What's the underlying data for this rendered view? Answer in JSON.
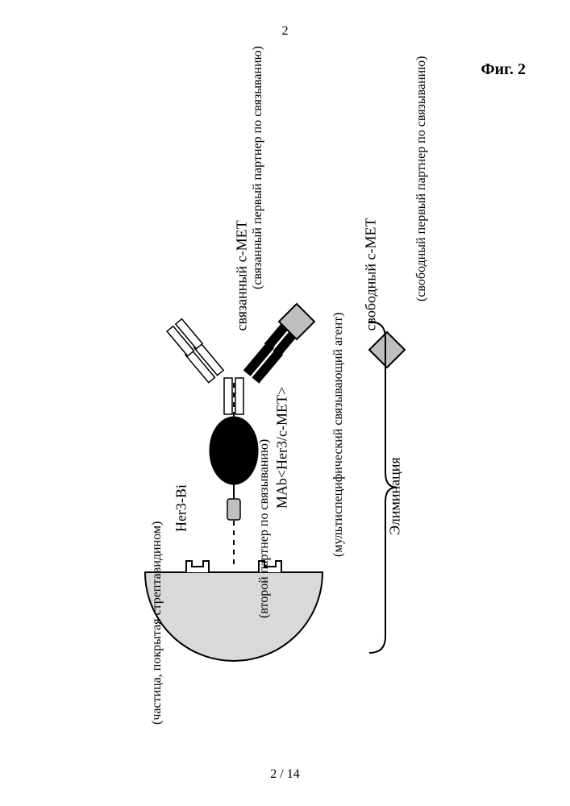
{
  "header": {
    "top_page": "2",
    "fig_title": "Фиг. 2",
    "bottom_page": "2 / 14"
  },
  "labels": {
    "free_cmet": "свободный   c-MET",
    "free_note": "(свободный первый партнер по связыванию)",
    "bound_note": "(связанный первый партнер по связыванию)",
    "bound_cmet": "связанный   c-MET",
    "mab": "MAb<Her3/c-MET>",
    "mab_note": "(мультиспецифический связывающий агент)",
    "her3bi": "Her3-Bi",
    "her3bi_note": "(второй партнер по связыванию)",
    "bead_note": "(частица, покрытая стрептавидином)",
    "elimination": "Элиминация"
  },
  "style": {
    "bg": "#ffffff",
    "stroke": "#000000",
    "bead_fill": "#d9d9d9",
    "receptor_fill": "#ffffff",
    "biotin_fill": "#c0c0c0",
    "her3_fill": "#000000",
    "cmet_fill": "#bfbfbf",
    "dash": "6,6",
    "font": "Times New Roman"
  }
}
